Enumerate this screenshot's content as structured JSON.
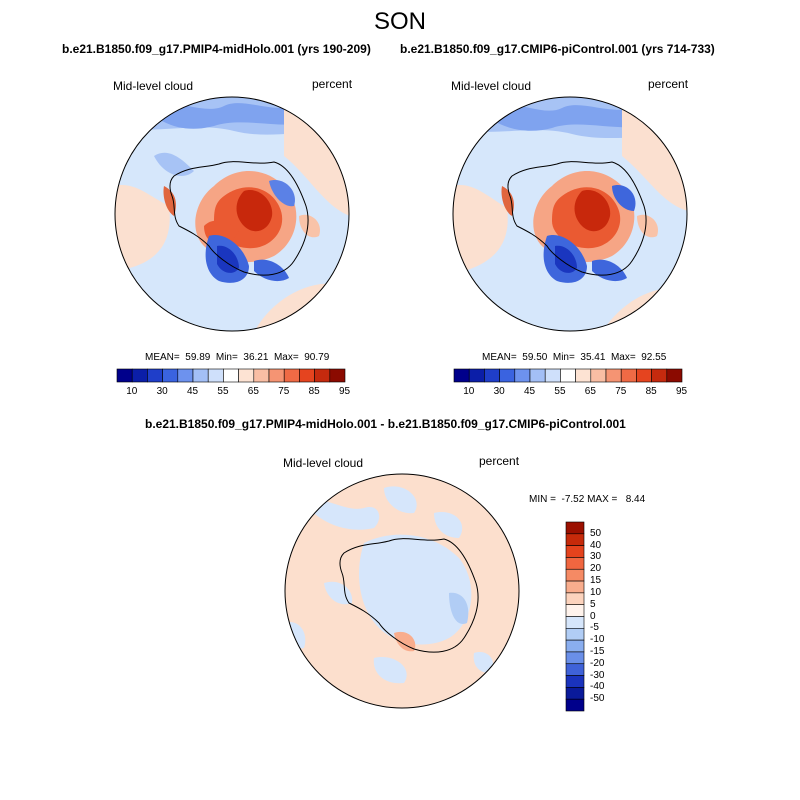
{
  "season": "SON",
  "panels": [
    {
      "title": "b.e21.B1850.f09_g17.PMIP4-midHolo.001 (yrs 190-209)",
      "variable": "Mid-level cloud",
      "units": "percent",
      "stats": "MEAN=  59.89  Min=  36.21  Max=  90.79"
    },
    {
      "title": "b.e21.B1850.f09_g17.CMIP6-piControl.001 (yrs 714-733)",
      "variable": "Mid-level cloud",
      "units": "percent",
      "stats": "MEAN=  59.50  Min=  35.41  Max=  92.55"
    }
  ],
  "abs_colorbar": {
    "ticks": [
      "10",
      "30",
      "45",
      "55",
      "65",
      "75",
      "85",
      "95"
    ],
    "colors": [
      "#00008b",
      "#0b1ea8",
      "#1f3ec9",
      "#3a63e0",
      "#6d92ee",
      "#a3bff6",
      "#cfe0fb",
      "#ffffff",
      "#fde3d3",
      "#f9bea4",
      "#f59473",
      "#ef6a45",
      "#e5441f",
      "#c52a0e",
      "#8b0a00"
    ]
  },
  "diff": {
    "title": "b.e21.B1850.f09_g17.PMIP4-midHolo.001 - b.e21.B1850.f09_g17.CMIP6-piControl.001",
    "variable": "Mid-level cloud",
    "units": "percent",
    "stats": "MIN =  -7.52 MAX =   8.44",
    "ticks": [
      "50",
      "40",
      "30",
      "20",
      "15",
      "10",
      "5",
      "0",
      "-5",
      "-10",
      "-15",
      "-20",
      "-30",
      "-40",
      "-50"
    ],
    "colors": [
      "#9b1000",
      "#c62a0a",
      "#e4431d",
      "#f06640",
      "#f58a64",
      "#f9ad8d",
      "#fcd3bd",
      "#fff3ec",
      "#d6e6fb",
      "#b1cdf5",
      "#8aaeef",
      "#6a8fe8",
      "#3f62d8",
      "#1a33bd",
      "#0a1a9a",
      "#00008b"
    ]
  }
}
